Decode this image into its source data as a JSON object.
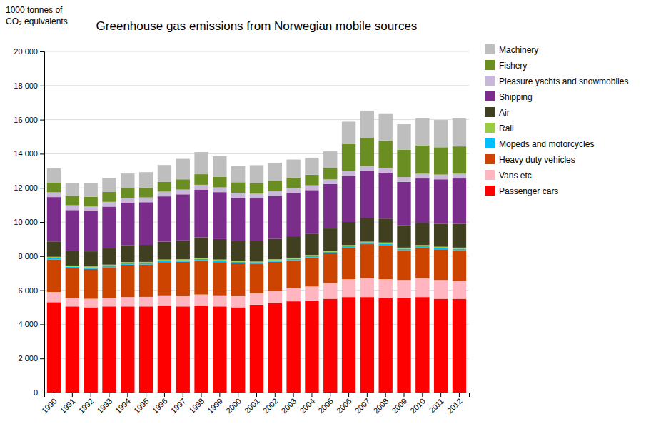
{
  "chart_data": {
    "type": "bar",
    "stacked": true,
    "title": "Greenhouse gas emissions from Norwegian mobile sources",
    "ylabel": [
      "1000 tonnes of",
      "CO₂ equivalents"
    ],
    "categories": [
      "1990",
      "1991",
      "1992",
      "1993",
      "1994",
      "1995",
      "1996",
      "1997",
      "1998",
      "1999",
      "2000",
      "2001",
      "2002",
      "2003",
      "2004",
      "2005",
      "2006",
      "2007",
      "2008",
      "2009",
      "2010",
      "2011",
      "2012"
    ],
    "series": [
      {
        "name": "Passenger cars",
        "color": "#FF0000",
        "values": [
          5300,
          5050,
          5000,
          5050,
          5050,
          5050,
          5100,
          5050,
          5100,
          5050,
          5000,
          5150,
          5250,
          5350,
          5400,
          5500,
          5600,
          5600,
          5550,
          5550,
          5600,
          5500,
          5500
        ]
      },
      {
        "name": "Vans etc.",
        "color": "#FFB6C1",
        "values": [
          600,
          500,
          500,
          500,
          550,
          560,
          600,
          620,
          650,
          650,
          680,
          680,
          720,
          760,
          820,
          920,
          1050,
          1100,
          1100,
          1050,
          1100,
          1100,
          1050
        ]
      },
      {
        "name": "Heavy duty vehicles",
        "color": "#CC4400",
        "values": [
          1900,
          1750,
          1750,
          1800,
          1900,
          1900,
          1950,
          2000,
          2000,
          1950,
          1900,
          1700,
          1700,
          1650,
          1700,
          1750,
          1850,
          2000,
          2000,
          1750,
          1800,
          1800,
          1800
        ]
      },
      {
        "name": "Mopeds and motorcycles",
        "color": "#00BFFF",
        "values": [
          80,
          80,
          80,
          80,
          80,
          80,
          80,
          80,
          80,
          80,
          80,
          80,
          80,
          80,
          80,
          80,
          80,
          80,
          80,
          80,
          80,
          80,
          80
        ]
      },
      {
        "name": "Rail",
        "color": "#99CC44",
        "values": [
          80,
          70,
          70,
          70,
          70,
          70,
          70,
          70,
          70,
          70,
          70,
          70,
          70,
          70,
          70,
          70,
          70,
          70,
          70,
          70,
          70,
          70,
          70
        ]
      },
      {
        "name": "Air",
        "color": "#404020",
        "values": [
          900,
          850,
          880,
          950,
          980,
          1000,
          1050,
          1100,
          1200,
          1200,
          1150,
          1200,
          1200,
          1250,
          1250,
          1300,
          1350,
          1400,
          1400,
          1300,
          1300,
          1350,
          1400
        ]
      },
      {
        "name": "Shipping",
        "color": "#7B2D8B",
        "values": [
          2600,
          2400,
          2350,
          2450,
          2500,
          2500,
          2650,
          2700,
          2800,
          2750,
          2550,
          2500,
          2500,
          2550,
          2550,
          2600,
          2700,
          2750,
          2700,
          2550,
          2600,
          2600,
          2650
        ]
      },
      {
        "name": "Pleasure yachts and snowmobiles",
        "color": "#C8B8D8",
        "values": [
          280,
          280,
          280,
          280,
          280,
          280,
          280,
          280,
          280,
          280,
          280,
          280,
          280,
          280,
          280,
          280,
          280,
          280,
          280,
          280,
          280,
          280,
          280
        ]
      },
      {
        "name": "Fishery",
        "color": "#6B8E23",
        "values": [
          580,
          550,
          560,
          580,
          580,
          580,
          580,
          600,
          620,
          620,
          620,
          620,
          620,
          620,
          620,
          640,
          1600,
          1650,
          1600,
          1600,
          1650,
          1600,
          1600
        ]
      },
      {
        "name": "Machinery",
        "color": "#BEBEBE",
        "values": [
          820,
          770,
          830,
          820,
          850,
          900,
          980,
          1200,
          1300,
          1200,
          950,
          1050,
          1050,
          1050,
          1000,
          1000,
          1300,
          1600,
          1550,
          1500,
          1600,
          1600,
          1650
        ]
      }
    ],
    "ylim": [
      0,
      20000
    ],
    "yticks": [
      0,
      {
        "value": 2000,
        "label": "2 000"
      },
      {
        "value": 4000,
        "label": "4 000"
      },
      {
        "value": 6000,
        "label": "6 000"
      },
      {
        "value": 8000,
        "label": "8 000"
      },
      {
        "value": 10000,
        "label": "10 000"
      },
      {
        "value": 12000,
        "label": "12 000"
      },
      {
        "value": 14000,
        "label": "14 000"
      },
      {
        "value": 16000,
        "label": "16 000"
      },
      {
        "value": 18000,
        "label": "18 000"
      },
      {
        "value": 20000,
        "label": "20 000"
      }
    ],
    "grid": true,
    "legend": "right"
  }
}
